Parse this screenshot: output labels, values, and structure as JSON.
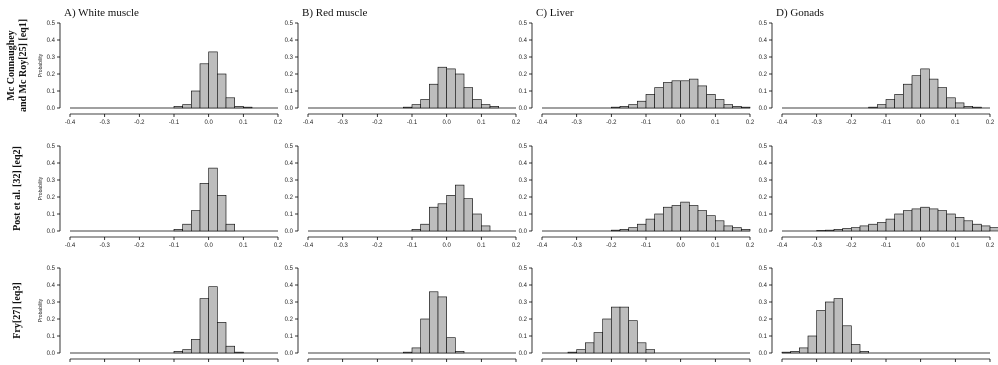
{
  "chart_data": {
    "type": "bar",
    "bin_width": 0.025,
    "xlim": [
      -0.4,
      0.2
    ],
    "ylim": [
      0,
      0.5
    ],
    "x_ticks": [
      "-0.4",
      "-0.3",
      "-0.2",
      "-0.1",
      "0.0",
      "0.1",
      "0.2"
    ],
    "y_ticks": [
      "0.0",
      "0.1",
      "0.2",
      "0.3",
      "0.4",
      "0.5"
    ],
    "ylabel": "Probability",
    "columns": [
      "A) White muscle",
      "B) Red muscle",
      "C) Liver",
      "D) Gonads"
    ],
    "rows": [
      {
        "label_lines": [
          "Mc Connaughey",
          "and Mc Roy[25] [eq1]"
        ],
        "panels": [
          {
            "bin_starts": [
              -0.1,
              -0.075,
              -0.05,
              -0.025,
              0,
              0.025,
              0.05,
              0.075,
              0.1
            ],
            "values": [
              0.01,
              0.02,
              0.1,
              0.26,
              0.33,
              0.2,
              0.06,
              0.01,
              0.005
            ]
          },
          {
            "bin_starts": [
              -0.125,
              -0.1,
              -0.075,
              -0.05,
              -0.025,
              0,
              0.025,
              0.05,
              0.075,
              0.1,
              0.125
            ],
            "values": [
              0.005,
              0.02,
              0.05,
              0.14,
              0.24,
              0.23,
              0.2,
              0.12,
              0.05,
              0.02,
              0.01
            ]
          },
          {
            "bin_starts": [
              -0.2,
              -0.175,
              -0.15,
              -0.125,
              -0.1,
              -0.075,
              -0.05,
              -0.025,
              0,
              0.025,
              0.05,
              0.075,
              0.1,
              0.125,
              0.15,
              0.175
            ],
            "values": [
              0.005,
              0.01,
              0.02,
              0.04,
              0.08,
              0.12,
              0.15,
              0.16,
              0.16,
              0.17,
              0.13,
              0.08,
              0.05,
              0.02,
              0.01,
              0.005
            ]
          },
          {
            "bin_starts": [
              -0.15,
              -0.125,
              -0.1,
              -0.075,
              -0.05,
              -0.025,
              0,
              0.025,
              0.05,
              0.075,
              0.1,
              0.125,
              0.15
            ],
            "values": [
              0.005,
              0.02,
              0.05,
              0.08,
              0.14,
              0.19,
              0.23,
              0.17,
              0.12,
              0.06,
              0.03,
              0.01,
              0.005
            ]
          }
        ]
      },
      {
        "label_lines": [
          "Post et al. [32] [eq2]"
        ],
        "panels": [
          {
            "bin_starts": [
              -0.1,
              -0.075,
              -0.05,
              -0.025,
              0,
              0.025,
              0.05
            ],
            "values": [
              0.01,
              0.04,
              0.12,
              0.28,
              0.37,
              0.21,
              0.04
            ]
          },
          {
            "bin_starts": [
              -0.1,
              -0.075,
              -0.05,
              -0.025,
              0,
              0.025,
              0.05,
              0.075,
              0.1
            ],
            "values": [
              0.01,
              0.04,
              0.14,
              0.16,
              0.21,
              0.27,
              0.19,
              0.1,
              0.03
            ]
          },
          {
            "bin_starts": [
              -0.2,
              -0.175,
              -0.15,
              -0.125,
              -0.1,
              -0.075,
              -0.05,
              -0.025,
              0,
              0.025,
              0.05,
              0.075,
              0.1,
              0.125,
              0.15,
              0.175
            ],
            "values": [
              0.005,
              0.01,
              0.02,
              0.04,
              0.07,
              0.1,
              0.14,
              0.15,
              0.17,
              0.15,
              0.12,
              0.09,
              0.06,
              0.03,
              0.02,
              0.01
            ]
          },
          {
            "bin_starts": [
              -0.3,
              -0.275,
              -0.25,
              -0.225,
              -0.2,
              -0.175,
              -0.15,
              -0.125,
              -0.1,
              -0.075,
              -0.05,
              -0.025,
              0,
              0.025,
              0.05,
              0.075,
              0.1,
              0.125,
              0.15,
              0.175,
              0.2
            ],
            "values": [
              0.003,
              0.005,
              0.01,
              0.015,
              0.02,
              0.03,
              0.04,
              0.05,
              0.07,
              0.1,
              0.12,
              0.13,
              0.14,
              0.13,
              0.12,
              0.1,
              0.08,
              0.06,
              0.04,
              0.03,
              0.02
            ]
          }
        ]
      },
      {
        "label_lines": [
          "Fry[27] [eq3]"
        ],
        "panels": [
          {
            "bin_starts": [
              -0.1,
              -0.075,
              -0.05,
              -0.025,
              0,
              0.025,
              0.05,
              0.075
            ],
            "values": [
              0.01,
              0.02,
              0.08,
              0.32,
              0.39,
              0.18,
              0.04,
              0.005
            ]
          },
          {
            "bin_starts": [
              -0.125,
              -0.1,
              -0.075,
              -0.05,
              -0.025,
              0,
              0.025
            ],
            "values": [
              0.005,
              0.03,
              0.2,
              0.36,
              0.33,
              0.09,
              0.01
            ]
          },
          {
            "bin_starts": [
              -0.325,
              -0.3,
              -0.275,
              -0.25,
              -0.225,
              -0.2,
              -0.175,
              -0.15,
              -0.125,
              -0.1
            ],
            "values": [
              0.005,
              0.02,
              0.06,
              0.12,
              0.2,
              0.27,
              0.27,
              0.19,
              0.06,
              0.02
            ]
          },
          {
            "bin_starts": [
              -0.4,
              -0.375,
              -0.35,
              -0.325,
              -0.3,
              -0.275,
              -0.25,
              -0.225,
              -0.2,
              -0.175
            ],
            "values": [
              0.005,
              0.01,
              0.03,
              0.1,
              0.25,
              0.3,
              0.32,
              0.16,
              0.05,
              0.01
            ]
          }
        ]
      }
    ]
  }
}
